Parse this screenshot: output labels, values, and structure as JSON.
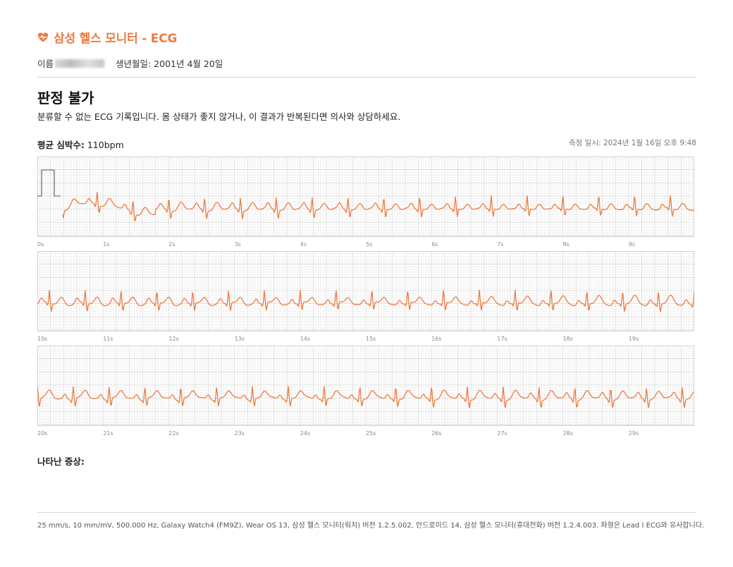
{
  "header": {
    "title": "삼성 헬스 모니터 - ECG",
    "logo_icon": "heart-icon"
  },
  "patient": {
    "name_label": "이름",
    "birth": "생년월일: 2001년 4월 20일"
  },
  "result": {
    "verdict": "판정 불가",
    "description": "분류할 수 없는 ECG 기록입니다. 몸 상태가 좋지 않거나, 이 결과가 반복된다면 의사와 상담하세요."
  },
  "heart_rate": {
    "label": "평균 심박수:",
    "value": "110bpm"
  },
  "measured_at": "측정 일시: 2024년 1월 16일 오후 9:48",
  "strips": [
    {
      "ticks": [
        "0s",
        "1s",
        "2s",
        "3s",
        "4s",
        "5s",
        "6s",
        "7s",
        "8s",
        "9s"
      ]
    },
    {
      "ticks": [
        "10s",
        "11s",
        "12s",
        "13s",
        "14s",
        "15s",
        "16s",
        "17s",
        "18s",
        "19s"
      ]
    },
    {
      "ticks": [
        "20s",
        "21s",
        "22s",
        "23s",
        "24s",
        "25s",
        "26s",
        "27s",
        "28s",
        "29s"
      ]
    }
  ],
  "symptoms_label": "나타난 증상:",
  "footer": "25 mm/s, 10 mm/mV, 500.000 Hz, Galaxy Watch4 (FM9Z), Wear OS 13, 삼성 헬스 모니터(워치) 버전 1.2.5.002, 안드로이드 14, 삼성 헬스 모니터(휴대전화) 버전 1.2.4.003. 파형은 Lead I ECG와 유사합니다.",
  "colors": {
    "accent": "#ef7a3f",
    "trace": "#ef7a3f",
    "grid_minor": "#eeeeee",
    "grid_major": "#d0d0d0"
  }
}
